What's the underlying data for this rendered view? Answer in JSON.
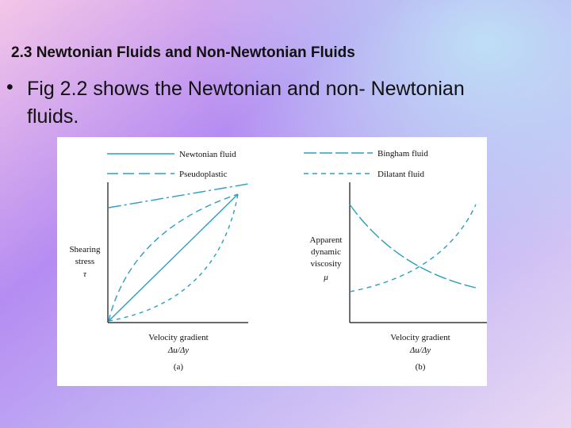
{
  "header": {
    "title": "2.3 Newtonian Fluids and Non-Newtonian Fluids"
  },
  "bullets": [
    "Fig 2.2 shows the Newtonian and non- Newtonian",
    "fluids."
  ],
  "figure": {
    "panels": [
      {
        "legend": [
          "Newtonian fluid",
          "Pseudoplastic"
        ],
        "y_label": [
          "Shearing",
          "stress",
          "τ"
        ],
        "x_label": [
          "Velocity gradient",
          "Δu/Δy"
        ],
        "caption": "(a)"
      },
      {
        "legend": [
          "Bingham fluid",
          "Dilatant fluid"
        ],
        "y_label": [
          "Apparent",
          "dynamic",
          "viscosity",
          "μ"
        ],
        "x_label": [
          "Velocity gradient",
          "Δu/Δy"
        ],
        "caption": "(b)"
      }
    ]
  }
}
